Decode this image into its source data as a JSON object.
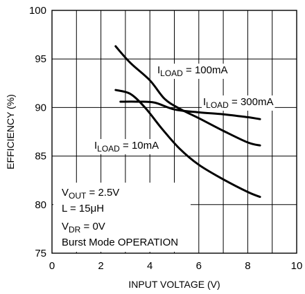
{
  "chart_data": {
    "type": "line",
    "title": "",
    "xlabel": "INPUT VOLTAGE (V)",
    "ylabel": "EFFICIENCY (%)",
    "xlim": [
      0,
      10
    ],
    "ylim": [
      75,
      100
    ],
    "x_ticks": [
      "0",
      "2",
      "4",
      "6",
      "8",
      "10"
    ],
    "y_ticks": [
      "75",
      "80",
      "85",
      "90",
      "95",
      "100"
    ],
    "grid": true,
    "series": [
      {
        "name_main": "I",
        "name_sub": "LOAD",
        "name_value": " = 100mA",
        "x": [
          2.6,
          3.2,
          4.0,
          4.6,
          5.2,
          6.0,
          7.0,
          8.0,
          8.5
        ],
        "y": [
          96.3,
          94.6,
          92.8,
          90.9,
          89.9,
          88.9,
          87.6,
          86.4,
          86.1
        ]
      },
      {
        "name_main": "I",
        "name_sub": "LOAD",
        "name_value": " = 300mA",
        "x": [
          2.8,
          3.5,
          4.2,
          5.0,
          6.0,
          7.0,
          8.0,
          8.5
        ],
        "y": [
          90.6,
          90.6,
          90.5,
          89.8,
          89.5,
          89.3,
          89.0,
          88.8
        ]
      },
      {
        "name_main": "I",
        "name_sub": "LOAD",
        "name_value": " = 10mA",
        "x": [
          2.6,
          3.2,
          3.8,
          4.5,
          5.2,
          6.0,
          7.0,
          8.0,
          8.5
        ],
        "y": [
          91.8,
          91.4,
          90.0,
          87.8,
          85.8,
          84.1,
          82.6,
          81.3,
          80.8
        ]
      }
    ],
    "annotation_lines": [
      {
        "main": "V",
        "sub": "OUT",
        "rest": " = 2.5V"
      },
      {
        "main": "L = 15μH",
        "sub": "",
        "rest": ""
      },
      {
        "main": "V",
        "sub": "DR",
        "rest": " = 0V"
      },
      {
        "main": "Burst Mode OPERATION",
        "sub": "",
        "rest": ""
      }
    ]
  }
}
